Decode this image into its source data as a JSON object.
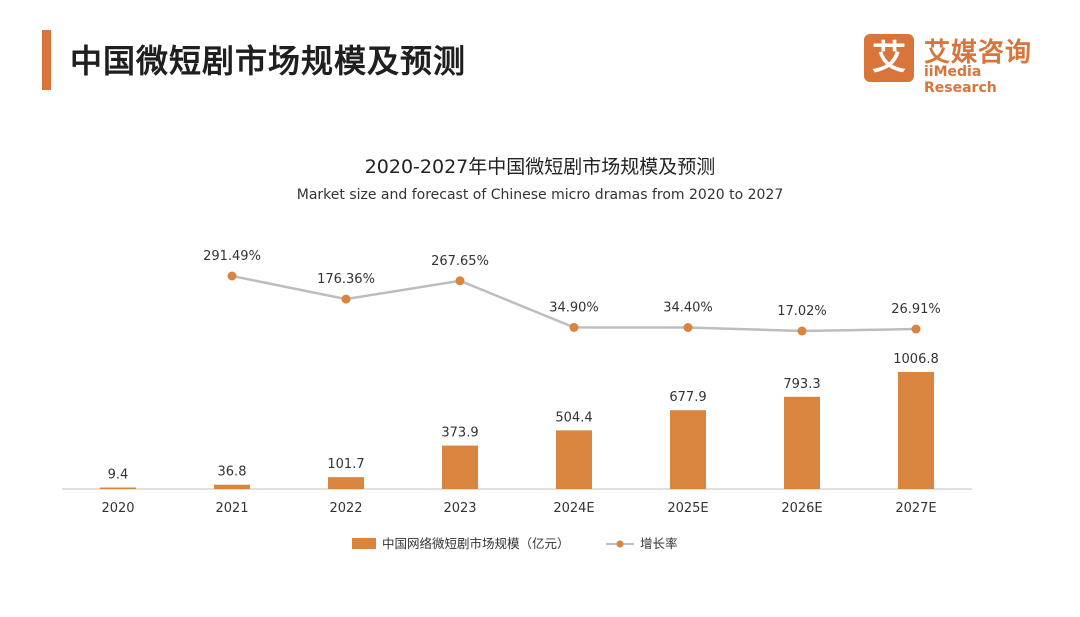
{
  "header": {
    "page_title": "中国微短剧市场规模及预测",
    "logo_mark": "艾",
    "logo_name": "艾媒咨询",
    "logo_sub": "iiMedia Research"
  },
  "colors": {
    "accent": "#D9743A",
    "bar": "#D9843F",
    "line": "#BDBDBD",
    "marker": "#D9843F",
    "axis": "#BFBFBF",
    "text": "#333333"
  },
  "chart_data": {
    "type": "bar",
    "title": "2020-2027年中国微短剧市场规模及预测",
    "subtitle": "Market size and forecast of Chinese micro dramas from 2020 to 2027",
    "categories": [
      "2020",
      "2021",
      "2022",
      "2023",
      "2024E",
      "2025E",
      "2026E",
      "2027E"
    ],
    "series": [
      {
        "name": "中国网络微短剧市场规模（亿元）",
        "type": "bar",
        "values": [
          9.4,
          36.8,
          101.7,
          373.9,
          504.4,
          677.9,
          793.3,
          1006.8
        ],
        "labels": [
          "9.4",
          "36.8",
          "101.7",
          "373.9",
          "504.4",
          "677.9",
          "793.3",
          "1006.8"
        ]
      },
      {
        "name": "增长率",
        "type": "line",
        "values": [
          null,
          291.49,
          176.36,
          267.65,
          34.9,
          34.4,
          17.02,
          26.91
        ],
        "labels": [
          "",
          "291.49%",
          "176.36%",
          "267.65%",
          "34.90%",
          "34.40%",
          "17.02%",
          "26.91%"
        ]
      }
    ],
    "bar_ylim": [
      0,
      1100
    ],
    "grid": false,
    "legend_position": "bottom-center"
  }
}
